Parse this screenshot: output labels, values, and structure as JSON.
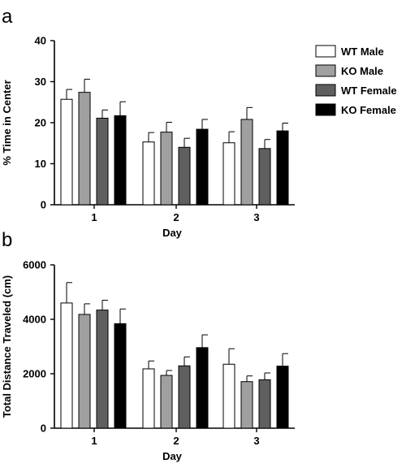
{
  "chart_data": [
    {
      "panel_label": "a",
      "type": "bar",
      "categories": [
        "1",
        "2",
        "3"
      ],
      "xlabel": "Day",
      "ylabel": "% Time in Center",
      "ylim": [
        0,
        40
      ],
      "yticks": [
        0,
        10,
        20,
        30,
        40
      ],
      "grid": false,
      "legend": "right",
      "series": [
        {
          "name": "WT Male",
          "color": "#ffffff",
          "values": [
            25.7,
            15.3,
            15.1
          ],
          "errors": [
            2.4,
            2.3,
            2.7
          ]
        },
        {
          "name": "KO Male",
          "color": "#a0a0a0",
          "values": [
            27.4,
            17.7,
            20.8
          ],
          "errors": [
            3.2,
            2.4,
            2.9
          ]
        },
        {
          "name": "WT Female",
          "color": "#5f5f5f",
          "values": [
            21.1,
            14.0,
            13.7
          ],
          "errors": [
            2.0,
            2.2,
            2.2
          ]
        },
        {
          "name": "KO Female",
          "color": "#000000",
          "values": [
            21.7,
            18.4,
            18.0
          ],
          "errors": [
            3.4,
            2.4,
            1.9
          ]
        }
      ]
    },
    {
      "panel_label": "b",
      "type": "bar",
      "categories": [
        "1",
        "2",
        "3"
      ],
      "xlabel": "Day",
      "ylabel": "Total Distance Traveled (cm)",
      "ylim": [
        0,
        6000
      ],
      "yticks": [
        0,
        2000,
        4000,
        6000
      ],
      "grid": false,
      "series": [
        {
          "name": "WT Male",
          "color": "#ffffff",
          "values": [
            4600,
            2180,
            2350
          ],
          "errors": [
            750,
            290,
            570
          ]
        },
        {
          "name": "KO Male",
          "color": "#a0a0a0",
          "values": [
            4180,
            1940,
            1710
          ],
          "errors": [
            390,
            180,
            210
          ]
        },
        {
          "name": "WT Female",
          "color": "#5f5f5f",
          "values": [
            4340,
            2290,
            1780
          ],
          "errors": [
            360,
            330,
            250
          ]
        },
        {
          "name": "KO Female",
          "color": "#000000",
          "values": [
            3840,
            2960,
            2280
          ],
          "errors": [
            540,
            470,
            460
          ]
        }
      ]
    }
  ]
}
